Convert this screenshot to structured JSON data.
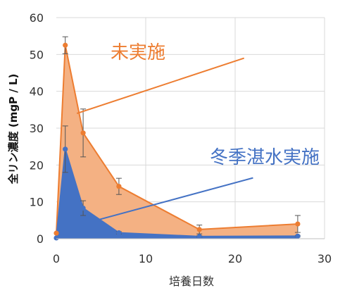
{
  "chart_data": {
    "type": "area",
    "xlabel": "培養日数",
    "ylabel": "全リン濃度 (mgP / L)",
    "xlim": [
      0,
      30
    ],
    "ylim": [
      0,
      60
    ],
    "x_ticks": [
      0,
      10,
      20,
      30
    ],
    "y_ticks": [
      0,
      10,
      20,
      30,
      40,
      50,
      60
    ],
    "grid": true,
    "series": [
      {
        "name": "未実施",
        "color": "#ed7d31",
        "fill": "#f4b183",
        "x": [
          0,
          1,
          3,
          7,
          16,
          27
        ],
        "y": [
          1.5,
          52.5,
          28.7,
          14.2,
          2.5,
          4.0
        ],
        "err": [
          0,
          2.3,
          6.5,
          2.2,
          1.2,
          2.3
        ]
      },
      {
        "name": "冬季湛水実施",
        "color": "#4472c4",
        "fill": "#4472c4",
        "x": [
          0,
          1,
          3,
          7,
          16,
          27
        ],
        "y": [
          0.2,
          24.3,
          8.3,
          1.6,
          0.6,
          0.7
        ],
        "err": [
          0,
          6.3,
          2.0,
          0.3,
          0.2,
          0.2
        ]
      }
    ],
    "annotations": [
      {
        "text": "未実施",
        "series": 0,
        "from": [
          21,
          49
        ],
        "to": [
          2.3,
          34
        ]
      },
      {
        "text": "冬季湛水実施",
        "series": 1,
        "from": [
          22,
          16.5
        ],
        "to": [
          4.5,
          5
        ]
      }
    ]
  }
}
